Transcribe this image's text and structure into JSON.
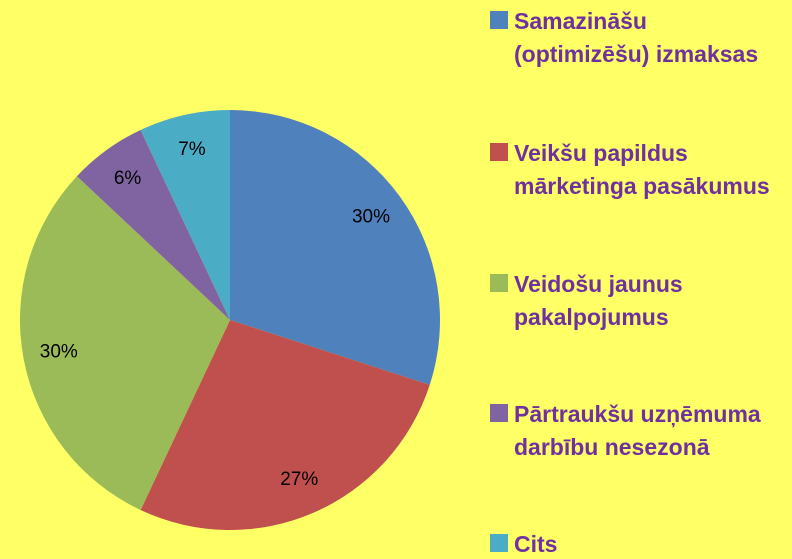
{
  "chart_data": {
    "type": "pie",
    "categories": [
      "Samazināšu (optimizēšu) izmaksas",
      "Veikšu papildus mārketinga pasākumus",
      "Veidošu jaunus pakalpojumus",
      "Pārtraukšu uzņēmuma darbību nesezonā",
      "Cits"
    ],
    "values": [
      30,
      27,
      30,
      6,
      7
    ],
    "value_labels": [
      "30%",
      "27%",
      "30%",
      "6%",
      "7%"
    ],
    "colors": [
      "#4f81bd",
      "#c0504d",
      "#9bbb59",
      "#8064a2",
      "#4bacc6"
    ],
    "legend": "right"
  }
}
